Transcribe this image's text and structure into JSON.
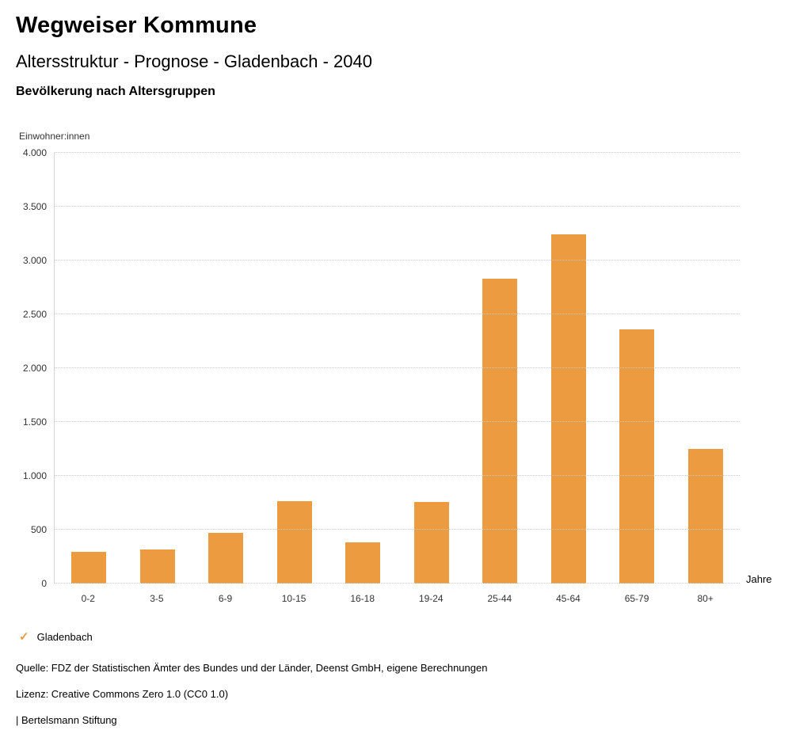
{
  "header": {
    "title": "Wegweiser Kommune",
    "subtitle": "Altersstruktur - Prognose - Gladenbach - 2040",
    "chart_subtitle": "Bevölkerung nach Altersgruppen"
  },
  "chart_data": {
    "type": "bar",
    "title": "Bevölkerung nach Altersgruppen",
    "ylabel": "Einwohner:innen",
    "xlabel": "Jahre",
    "categories": [
      "0-2",
      "3-5",
      "6-9",
      "10-15",
      "16-18",
      "19-24",
      "25-44",
      "45-64",
      "65-79",
      "80+"
    ],
    "series": [
      {
        "name": "Gladenbach",
        "values": [
          295,
          315,
          470,
          765,
          380,
          760,
          2830,
          3240,
          2360,
          1250
        ]
      }
    ],
    "ylim": [
      0,
      4000
    ],
    "yticks": [
      0,
      500,
      1000,
      1500,
      2000,
      2500,
      3000,
      3500,
      4000
    ],
    "ytick_labels": [
      "0",
      "500",
      "1.000",
      "1.500",
      "2.000",
      "2.500",
      "3.000",
      "3.500",
      "4.000"
    ],
    "grid": true,
    "bar_color": "#ED9B40",
    "legend_position": "bottom-left"
  },
  "legend": {
    "items": [
      {
        "label": "Gladenbach",
        "color": "#ED9B40",
        "marker": "check"
      }
    ]
  },
  "footer": {
    "source": "Quelle: FDZ der Statistischen Ämter des Bundes und der Länder, Deenst GmbH, eigene Berechnungen",
    "license": "Lizenz: Creative Commons Zero 1.0 (CC0 1.0)",
    "attribution": "| Bertelsmann Stiftung"
  }
}
